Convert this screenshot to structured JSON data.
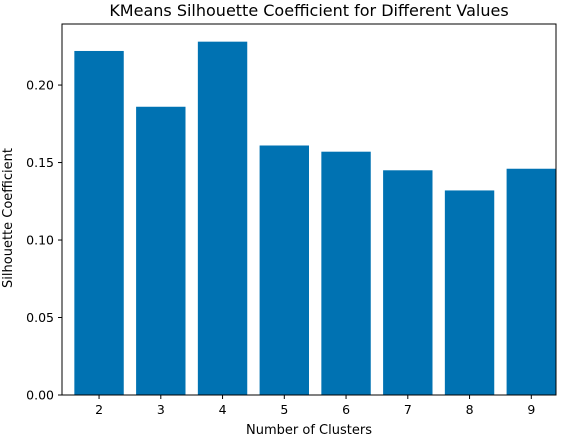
{
  "chart_data": {
    "type": "bar",
    "title": "KMeans Silhouette Coefficient for Different Values",
    "xlabel": "Number of Clusters",
    "ylabel": "Silhouette Coefficient",
    "categories": [
      "2",
      "3",
      "4",
      "5",
      "6",
      "7",
      "8",
      "9"
    ],
    "values": [
      0.222,
      0.186,
      0.228,
      0.161,
      0.157,
      0.145,
      0.132,
      0.146
    ],
    "ylim": [
      0,
      0.2394
    ],
    "yticks": [
      0.0,
      0.05,
      0.1,
      0.15,
      0.2
    ],
    "ytick_labels": [
      "0.00",
      "0.05",
      "0.10",
      "0.15",
      "0.20"
    ],
    "bar_color": "#0072b2",
    "grid": false,
    "legend": "none"
  }
}
